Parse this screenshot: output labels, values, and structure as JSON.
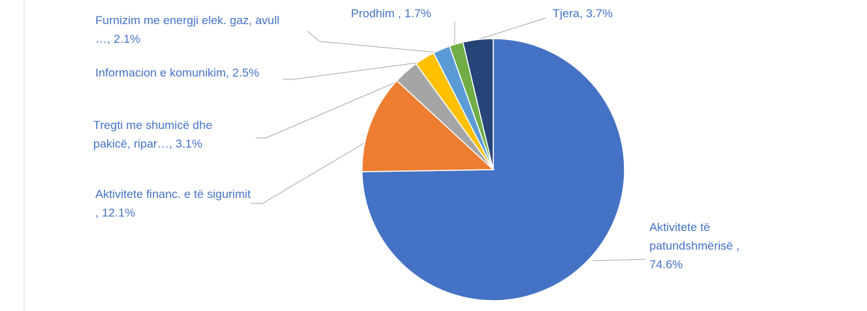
{
  "chart_data": {
    "type": "pie",
    "categories": [
      "Aktivitete të patundshmërisë ,",
      "Aktivitete financ. e të sigurimit  ,",
      "Tregti me shumicë dhe pakicë, ripar…,",
      "Informacion e komunikim,",
      "Furnizim me energji elek. gaz, avull …,",
      "Prodhim ,",
      "Tjera,"
    ],
    "values": [
      74.6,
      12.1,
      3.1,
      2.5,
      2.1,
      1.7,
      3.7
    ],
    "value_labels": [
      "74.6%",
      "12.1%",
      "3.1%",
      "2.5%",
      "2.1%",
      "1.7%",
      "3.7%"
    ],
    "colors": [
      "#4472c4",
      "#ed7d31",
      "#a5a5a5",
      "#ffc000",
      "#5b9bd5",
      "#70ad47",
      "#264478"
    ]
  }
}
